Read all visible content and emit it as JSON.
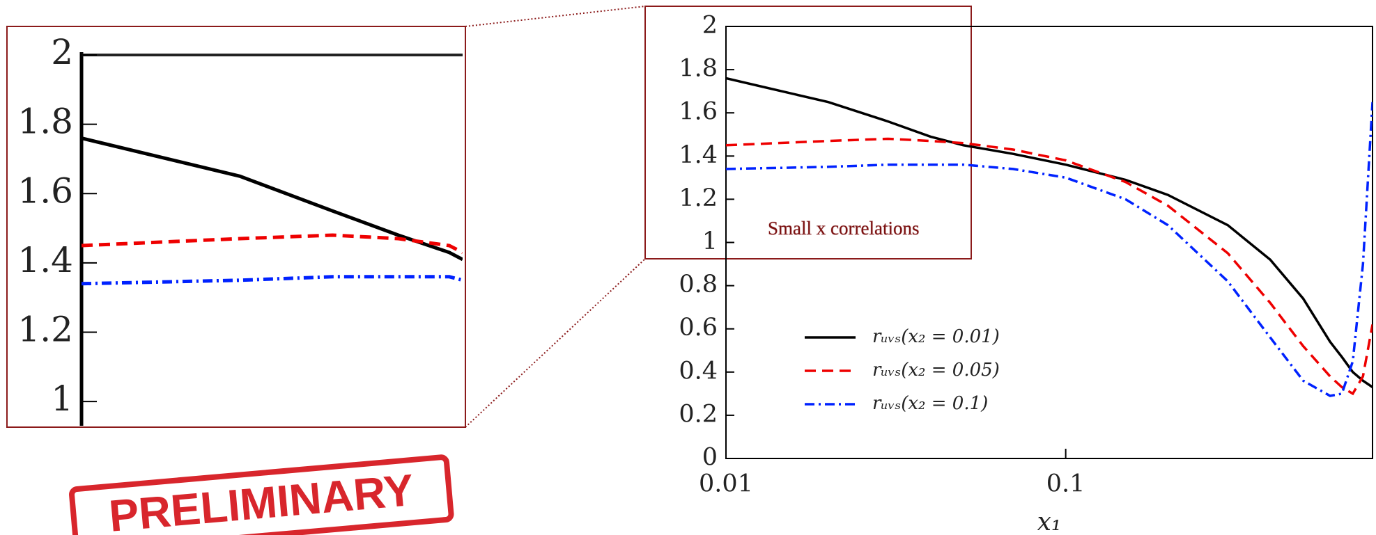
{
  "chart_data": [
    {
      "type": "line",
      "x_label": "x₁",
      "xscale": "log",
      "xlim": [
        0.01,
        0.8
      ],
      "xticks": [
        0.01,
        0.1
      ],
      "ylim": [
        0,
        2
      ],
      "yticks": [
        0,
        0.2,
        0.4,
        0.6,
        0.8,
        1,
        1.2,
        1.4,
        1.6,
        1.8,
        2
      ],
      "x": [
        0.01,
        0.02,
        0.03,
        0.04,
        0.05,
        0.07,
        0.1,
        0.15,
        0.2,
        0.3,
        0.4,
        0.5,
        0.6,
        0.65,
        0.7,
        0.75,
        0.8
      ],
      "legend": "lower left",
      "series": [
        {
          "name": "rᵤᵥₛ(x₂ = 0.01)",
          "color": "#000000",
          "dash": "solid",
          "values": [
            1.76,
            1.65,
            1.56,
            1.49,
            1.45,
            1.41,
            1.36,
            1.29,
            1.22,
            1.08,
            0.92,
            0.74,
            0.54,
            0.47,
            0.4,
            0.36,
            0.33
          ]
        },
        {
          "name": "rᵤᵥₛ(x₂ = 0.05)",
          "color": "#ee0000",
          "dash": "dashed",
          "values": [
            1.45,
            1.47,
            1.48,
            1.47,
            1.46,
            1.43,
            1.38,
            1.28,
            1.17,
            0.95,
            0.72,
            0.52,
            0.38,
            0.33,
            0.3,
            0.38,
            0.62
          ]
        },
        {
          "name": "rᵤᵥₛ(x₂ = 0.1)",
          "color": "#0022ff",
          "dash": "dashdot",
          "values": [
            1.34,
            1.35,
            1.36,
            1.36,
            1.36,
            1.34,
            1.3,
            1.2,
            1.08,
            0.82,
            0.56,
            0.36,
            0.29,
            0.3,
            0.45,
            0.9,
            1.65
          ]
        }
      ],
      "annotation": "Small x correlations"
    },
    {
      "type": "line",
      "xscale": "log",
      "xlim": [
        0.01,
        0.053
      ],
      "ylim": [
        0.93,
        2
      ],
      "yticks": [
        1,
        1.2,
        1.4,
        1.6,
        1.8,
        2
      ],
      "x": [
        0.01,
        0.02,
        0.03,
        0.04,
        0.05,
        0.053
      ],
      "series": [
        {
          "color": "#000000",
          "dash": "solid",
          "values": [
            1.76,
            1.65,
            1.55,
            1.48,
            1.43,
            1.41
          ]
        },
        {
          "color": "#ee0000",
          "dash": "dashed",
          "values": [
            1.45,
            1.47,
            1.48,
            1.47,
            1.45,
            1.43
          ]
        },
        {
          "color": "#0022ff",
          "dash": "dashdot",
          "values": [
            1.34,
            1.35,
            1.36,
            1.36,
            1.36,
            1.35
          ]
        }
      ]
    }
  ],
  "stamp": "PRELIMINARY"
}
